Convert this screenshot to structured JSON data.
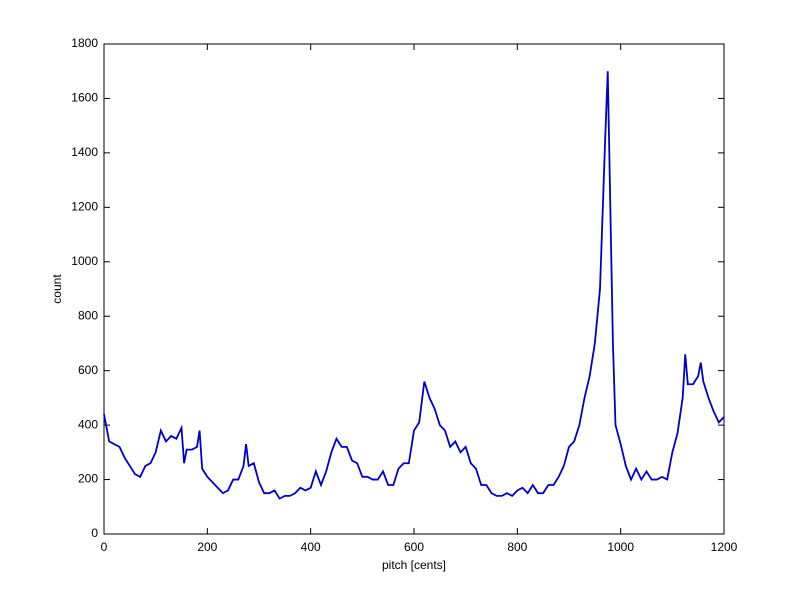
{
  "chart_data": {
    "type": "line",
    "xlabel": "pitch [cents]",
    "ylabel": "count",
    "x": [
      0,
      10,
      20,
      30,
      40,
      50,
      60,
      70,
      80,
      90,
      100,
      110,
      120,
      130,
      140,
      150,
      155,
      160,
      170,
      180,
      185,
      190,
      200,
      210,
      220,
      230,
      240,
      250,
      260,
      270,
      275,
      280,
      290,
      300,
      310,
      320,
      330,
      340,
      350,
      360,
      370,
      380,
      390,
      400,
      410,
      420,
      430,
      440,
      450,
      460,
      470,
      480,
      490,
      500,
      510,
      520,
      530,
      540,
      550,
      560,
      570,
      580,
      590,
      600,
      610,
      620,
      630,
      640,
      650,
      660,
      670,
      680,
      690,
      700,
      710,
      720,
      730,
      740,
      750,
      760,
      770,
      780,
      790,
      800,
      810,
      820,
      830,
      840,
      850,
      860,
      870,
      880,
      890,
      900,
      910,
      920,
      930,
      940,
      950,
      960,
      970,
      975,
      980,
      985,
      990,
      1000,
      1010,
      1020,
      1030,
      1040,
      1050,
      1060,
      1070,
      1080,
      1090,
      1100,
      1110,
      1120,
      1125,
      1130,
      1140,
      1150,
      1155,
      1160,
      1170,
      1180,
      1190,
      1200
    ],
    "series": [
      {
        "color": "#0000cc",
        "values": [
          440,
          340,
          330,
          320,
          280,
          250,
          220,
          210,
          250,
          260,
          300,
          380,
          340,
          360,
          350,
          390,
          260,
          310,
          310,
          320,
          380,
          240,
          210,
          190,
          170,
          150,
          160,
          200,
          200,
          250,
          330,
          250,
          260,
          190,
          150,
          150,
          160,
          130,
          140,
          140,
          150,
          170,
          160,
          170,
          230,
          180,
          230,
          300,
          350,
          320,
          320,
          270,
          260,
          210,
          210,
          200,
          200,
          230,
          180,
          180,
          240,
          260,
          260,
          380,
          410,
          560,
          500,
          460,
          400,
          380,
          320,
          340,
          300,
          320,
          260,
          240,
          180,
          180,
          150,
          140,
          140,
          150,
          140,
          160,
          170,
          150,
          180,
          150,
          150,
          180,
          180,
          210,
          250,
          320,
          340,
          400,
          500,
          580,
          700,
          900,
          1450,
          1700,
          1200,
          700,
          400,
          330,
          250,
          200,
          240,
          200,
          230,
          200,
          200,
          210,
          200,
          300,
          370,
          500,
          660,
          550,
          550,
          580,
          630,
          560,
          500,
          450,
          410,
          430
        ]
      }
    ],
    "xlim": [
      0,
      1200
    ],
    "xticks": [
      0,
      200,
      400,
      600,
      800,
      1000,
      1200
    ],
    "ylim": [
      0,
      1800
    ],
    "yticks": [
      0,
      200,
      400,
      600,
      800,
      1000,
      1200,
      1400,
      1600,
      1800
    ]
  }
}
